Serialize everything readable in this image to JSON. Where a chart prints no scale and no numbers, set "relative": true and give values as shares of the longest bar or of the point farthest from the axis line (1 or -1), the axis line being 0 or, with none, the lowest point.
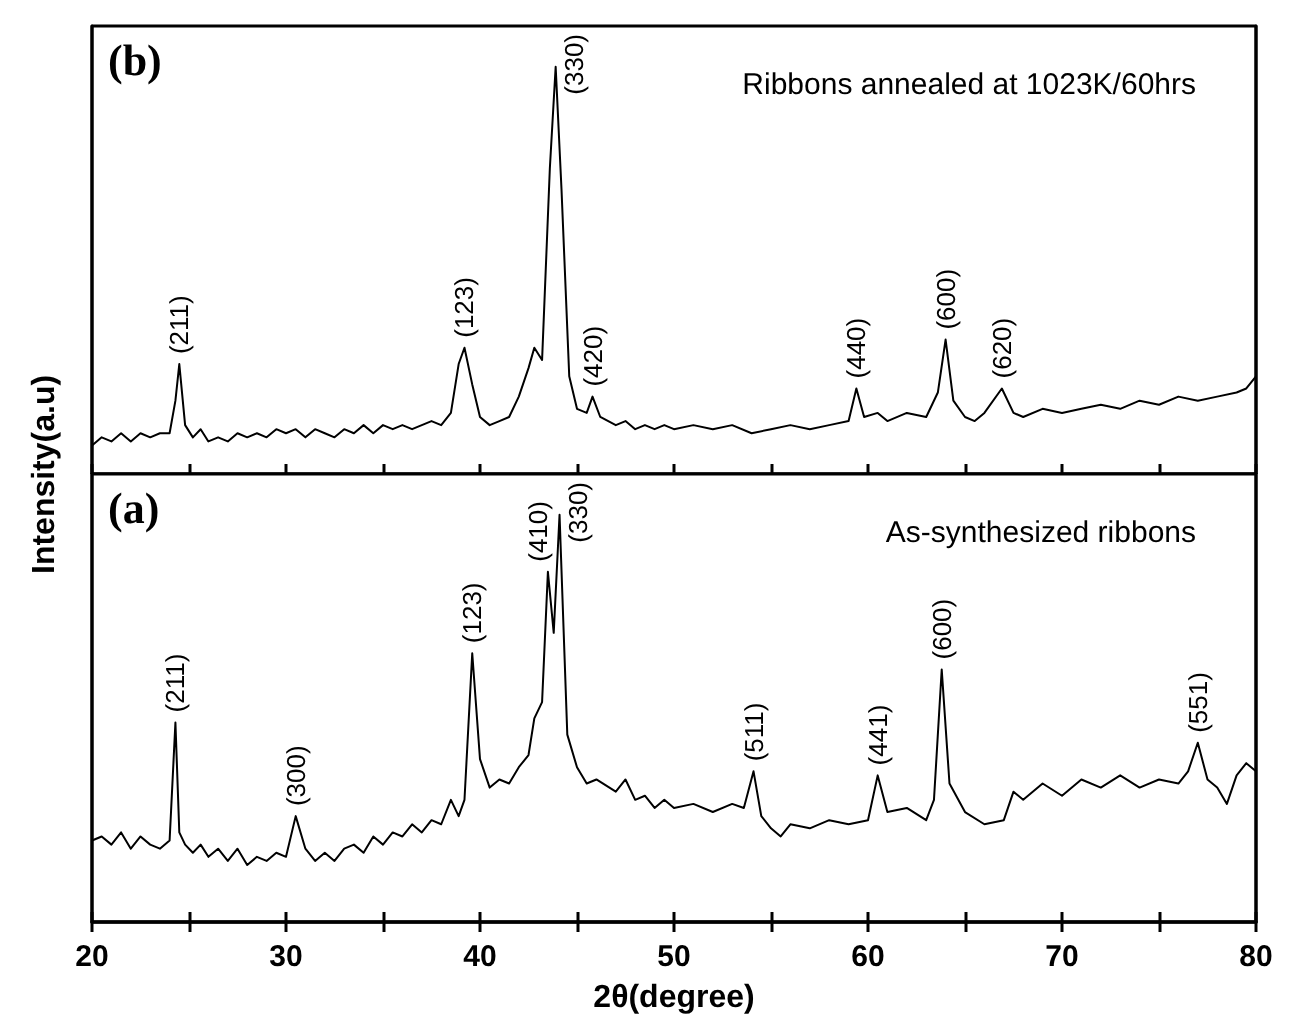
{
  "chart_data": [
    {
      "type": "line",
      "ylabel": "Intensity(a.u)",
      "relative": true,
      "xlim": [
        20,
        80
      ],
      "xticks": [
        20,
        25,
        30,
        35,
        40,
        45,
        50,
        55,
        60,
        65,
        70,
        75,
        80
      ],
      "tick_labels": false,
      "marker": "none",
      "line_style": "solid",
      "grid": false,
      "x": [
        20,
        20.5,
        21,
        21.5,
        22,
        22.5,
        23,
        23.5,
        24,
        24.3,
        24.5,
        24.8,
        25.2,
        25.6,
        26,
        26.5,
        27,
        27.5,
        28,
        28.5,
        29,
        29.5,
        30,
        30.5,
        31,
        31.5,
        32,
        32.5,
        33,
        33.5,
        34,
        34.5,
        35,
        35.5,
        36,
        36.5,
        37,
        37.5,
        38,
        38.5,
        38.9,
        39.2,
        39.6,
        40,
        40.5,
        41,
        41.5,
        42,
        42.5,
        42.8,
        43.2,
        43.6,
        43.9,
        44.2,
        44.6,
        45,
        45.5,
        45.8,
        46.2,
        47,
        47.5,
        48,
        48.5,
        49,
        49.5,
        50,
        51,
        52,
        53,
        54,
        55,
        56,
        57,
        58,
        59,
        59.4,
        59.8,
        60.5,
        61,
        62,
        63,
        63.6,
        64,
        64.4,
        65,
        65.5,
        66,
        66.9,
        67.5,
        68,
        69,
        70,
        71,
        72,
        73,
        74,
        75,
        76,
        77,
        78,
        79,
        79.5,
        80
      ],
      "series": [
        {
          "color": "#000000",
          "values": [
            0.07,
            0.09,
            0.08,
            0.1,
            0.08,
            0.1,
            0.09,
            0.1,
            0.1,
            0.18,
            0.27,
            0.12,
            0.09,
            0.11,
            0.08,
            0.09,
            0.08,
            0.1,
            0.09,
            0.1,
            0.09,
            0.11,
            0.1,
            0.11,
            0.09,
            0.11,
            0.1,
            0.09,
            0.11,
            0.1,
            0.12,
            0.1,
            0.12,
            0.11,
            0.12,
            0.11,
            0.12,
            0.13,
            0.12,
            0.15,
            0.27,
            0.31,
            0.22,
            0.14,
            0.12,
            0.13,
            0.14,
            0.19,
            0.26,
            0.31,
            0.28,
            0.75,
            1.0,
            0.7,
            0.24,
            0.16,
            0.15,
            0.19,
            0.14,
            0.12,
            0.13,
            0.11,
            0.12,
            0.11,
            0.12,
            0.11,
            0.12,
            0.11,
            0.12,
            0.1,
            0.11,
            0.12,
            0.11,
            0.12,
            0.13,
            0.21,
            0.14,
            0.15,
            0.13,
            0.15,
            0.14,
            0.2,
            0.33,
            0.18,
            0.14,
            0.13,
            0.15,
            0.21,
            0.15,
            0.14,
            0.16,
            0.15,
            0.16,
            0.17,
            0.16,
            0.18,
            0.17,
            0.19,
            0.18,
            0.19,
            0.2,
            0.21,
            0.24
          ]
        }
      ],
      "annotations": [
        "(b)",
        "Ribbons annealed at 1023K/60hrs",
        {
          "text": "(211)",
          "x": 24.5,
          "y": 0.27
        },
        {
          "text": "(123)",
          "x": 39.2,
          "y": 0.31
        },
        {
          "text": "(330)",
          "x": 43.9,
          "y": 1.0
        },
        {
          "text": "(420)",
          "x": 45.8,
          "y": 0.19
        },
        {
          "text": "(440)",
          "x": 59.4,
          "y": 0.21
        },
        {
          "text": "(600)",
          "x": 64,
          "y": 0.33
        },
        {
          "text": "(620)",
          "x": 66.9,
          "y": 0.21
        }
      ]
    },
    {
      "type": "line",
      "xlabel": "2θ(degree)",
      "relative": true,
      "xlim": [
        20,
        80
      ],
      "xticks": [
        20,
        {
          "value": 25,
          "label": null
        },
        30,
        {
          "value": 35,
          "label": null
        },
        40,
        {
          "value": 45,
          "label": null
        },
        50,
        {
          "value": 55,
          "label": null
        },
        60,
        {
          "value": 65,
          "label": null
        },
        70,
        {
          "value": 75,
          "label": null
        },
        80
      ],
      "tick_labels": "x",
      "marker": "none",
      "line_style": "solid",
      "grid": false,
      "x": [
        20,
        20.5,
        21,
        21.5,
        22,
        22.5,
        23,
        23.5,
        24,
        24.3,
        24.5,
        24.8,
        25.2,
        25.6,
        26,
        26.5,
        27,
        27.5,
        28,
        28.5,
        29,
        29.5,
        30,
        30.5,
        31,
        31.5,
        32,
        32.5,
        33,
        33.5,
        34,
        34.5,
        35,
        35.5,
        36,
        36.5,
        37,
        37.5,
        38,
        38.5,
        38.9,
        39.2,
        39.6,
        40,
        40.5,
        41,
        41.5,
        42,
        42.5,
        42.8,
        43.2,
        43.5,
        43.8,
        44.1,
        44.5,
        45,
        45.5,
        46,
        47,
        47.5,
        48,
        48.5,
        49,
        49.5,
        50,
        51,
        52,
        53,
        53.6,
        54.1,
        54.5,
        55,
        55.5,
        56,
        57,
        58,
        59,
        60,
        60.5,
        61,
        62,
        63,
        63.4,
        63.8,
        64.2,
        65,
        66,
        67,
        67.5,
        68,
        69,
        70,
        71,
        72,
        73,
        74,
        75,
        76,
        76.5,
        77,
        77.5,
        78,
        78.5,
        79,
        79.5,
        80
      ],
      "series": [
        {
          "color": "#000000",
          "values": [
            0.2,
            0.21,
            0.19,
            0.22,
            0.18,
            0.21,
            0.19,
            0.18,
            0.2,
            0.49,
            0.22,
            0.19,
            0.17,
            0.19,
            0.16,
            0.18,
            0.15,
            0.18,
            0.14,
            0.16,
            0.15,
            0.17,
            0.16,
            0.26,
            0.18,
            0.15,
            0.17,
            0.15,
            0.18,
            0.19,
            0.17,
            0.21,
            0.19,
            0.22,
            0.21,
            0.24,
            0.22,
            0.25,
            0.24,
            0.3,
            0.26,
            0.3,
            0.66,
            0.4,
            0.33,
            0.35,
            0.34,
            0.38,
            0.41,
            0.5,
            0.54,
            0.86,
            0.71,
            1.0,
            0.46,
            0.38,
            0.34,
            0.35,
            0.32,
            0.35,
            0.3,
            0.31,
            0.28,
            0.3,
            0.28,
            0.29,
            0.27,
            0.29,
            0.28,
            0.37,
            0.26,
            0.23,
            0.21,
            0.24,
            0.23,
            0.25,
            0.24,
            0.25,
            0.36,
            0.27,
            0.28,
            0.25,
            0.3,
            0.62,
            0.34,
            0.27,
            0.24,
            0.25,
            0.32,
            0.3,
            0.34,
            0.31,
            0.35,
            0.33,
            0.36,
            0.33,
            0.35,
            0.34,
            0.37,
            0.44,
            0.35,
            0.33,
            0.29,
            0.36,
            0.39,
            0.37
          ]
        }
      ],
      "annotations": [
        "(a)",
        "As-synthesized ribbons",
        {
          "text": "(211)",
          "x": 24.3,
          "y": 0.49
        },
        {
          "text": "(300)",
          "x": 30.5,
          "y": 0.26
        },
        {
          "text": "(123)",
          "x": 39.6,
          "y": 0.66
        },
        {
          "text": "(410)",
          "x": 43.5,
          "y": 0.86
        },
        {
          "text": "(330)",
          "x": 44.1,
          "y": 1.0
        },
        {
          "text": "(511)",
          "x": 54.1,
          "y": 0.37
        },
        {
          "text": "(441)",
          "x": 60.5,
          "y": 0.36
        },
        {
          "text": "(600)",
          "x": 63.8,
          "y": 0.62
        },
        {
          "text": "(551)",
          "x": 77,
          "y": 0.44
        }
      ]
    }
  ]
}
